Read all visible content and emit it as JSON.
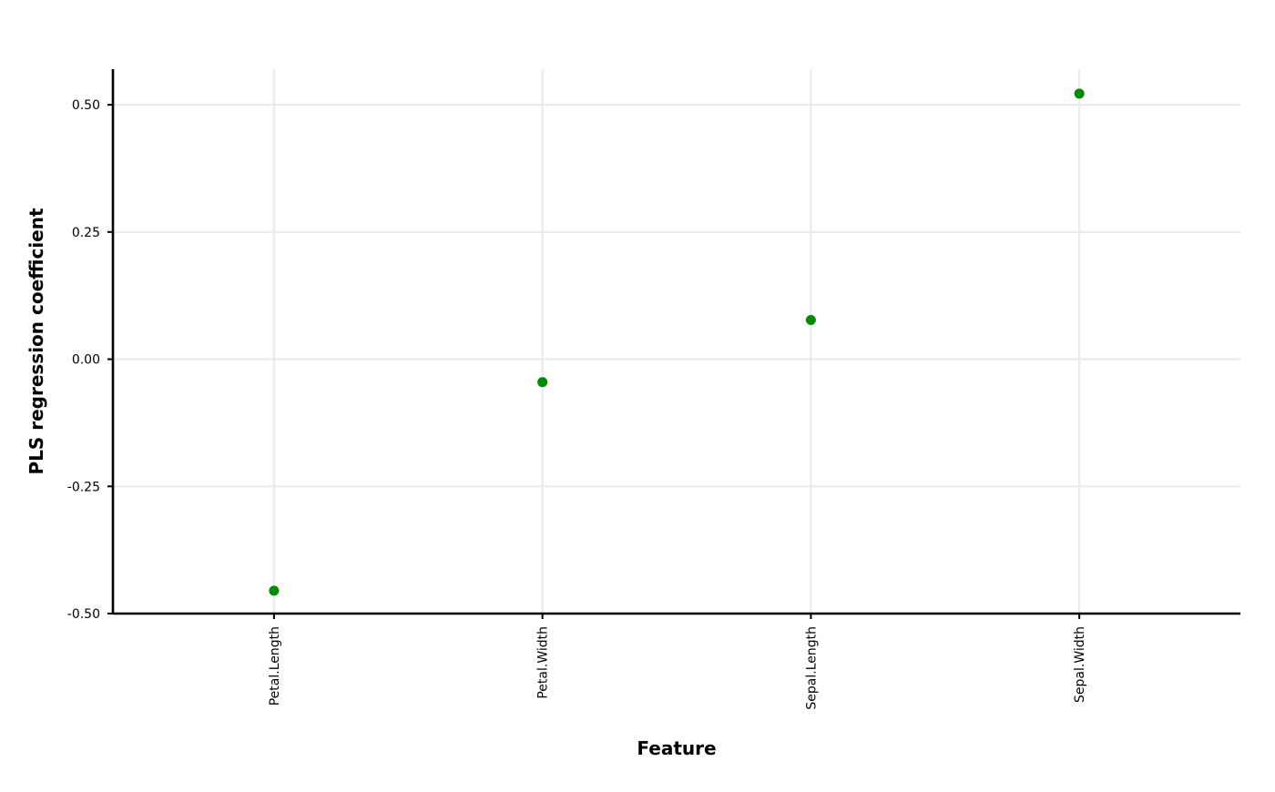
{
  "chart_data": {
    "type": "scatter",
    "title": "",
    "xlabel": "Feature",
    "ylabel": "PLS regression coefficient",
    "categories": [
      "Petal.Length",
      "Petal.Width",
      "Sepal.Length",
      "Sepal.Width"
    ],
    "values": [
      -0.455,
      -0.045,
      0.077,
      0.522
    ],
    "ylim": [
      -0.5,
      0.57
    ],
    "yticks": [
      -0.5,
      -0.25,
      0.0,
      0.25,
      0.5
    ],
    "ytick_labels": [
      "-0.50",
      "-0.25",
      "0.00",
      "0.25",
      "0.50"
    ],
    "grid": true,
    "legend": "none",
    "point_color": "#008B00"
  }
}
